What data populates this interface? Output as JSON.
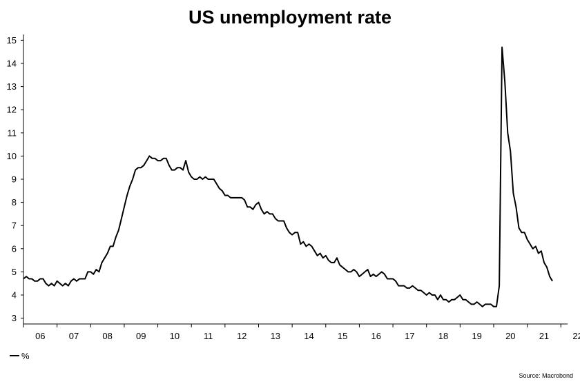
{
  "chart_data": {
    "type": "line",
    "title": "US unemployment rate",
    "source": "Source: Macrobond",
    "xlabel": "",
    "ylabel": "",
    "xlim": [
      2006,
      2022.2
    ],
    "ylim": [
      2.75,
      15.25
    ],
    "yticks": [
      3,
      4,
      5,
      6,
      7,
      8,
      9,
      10,
      11,
      12,
      13,
      14,
      15
    ],
    "xticks": [
      {
        "year": 2006,
        "label": "06"
      },
      {
        "year": 2007,
        "label": "07"
      },
      {
        "year": 2008,
        "label": "08"
      },
      {
        "year": 2009,
        "label": "09"
      },
      {
        "year": 2010,
        "label": "10"
      },
      {
        "year": 2011,
        "label": "11"
      },
      {
        "year": 2012,
        "label": "12"
      },
      {
        "year": 2013,
        "label": "13"
      },
      {
        "year": 2014,
        "label": "14"
      },
      {
        "year": 2015,
        "label": "15"
      },
      {
        "year": 2016,
        "label": "16"
      },
      {
        "year": 2017,
        "label": "17"
      },
      {
        "year": 2018,
        "label": "18"
      },
      {
        "year": 2019,
        "label": "19"
      },
      {
        "year": 2020,
        "label": "20"
      },
      {
        "year": 2021,
        "label": "21"
      },
      {
        "year": 2022,
        "label": "22"
      }
    ],
    "grid": false,
    "legend": "bottom-left",
    "series": [
      {
        "name": "%",
        "color": "#000000",
        "start": "2006-01",
        "frequency": "monthly",
        "values": [
          4.7,
          4.8,
          4.7,
          4.7,
          4.6,
          4.6,
          4.7,
          4.7,
          4.5,
          4.4,
          4.5,
          4.4,
          4.6,
          4.5,
          4.4,
          4.5,
          4.4,
          4.6,
          4.7,
          4.6,
          4.7,
          4.7,
          4.7,
          5.0,
          5.0,
          4.9,
          5.1,
          5.0,
          5.4,
          5.6,
          5.8,
          6.1,
          6.1,
          6.5,
          6.8,
          7.3,
          7.8,
          8.3,
          8.7,
          9.0,
          9.4,
          9.5,
          9.5,
          9.6,
          9.8,
          10.0,
          9.9,
          9.9,
          9.8,
          9.8,
          9.9,
          9.9,
          9.6,
          9.4,
          9.4,
          9.5,
          9.5,
          9.4,
          9.8,
          9.3,
          9.1,
          9.0,
          9.0,
          9.1,
          9.0,
          9.1,
          9.0,
          9.0,
          9.0,
          8.8,
          8.6,
          8.5,
          8.3,
          8.3,
          8.2,
          8.2,
          8.2,
          8.2,
          8.2,
          8.1,
          7.8,
          7.8,
          7.7,
          7.9,
          8.0,
          7.7,
          7.5,
          7.6,
          7.5,
          7.5,
          7.3,
          7.2,
          7.2,
          7.2,
          6.9,
          6.7,
          6.6,
          6.7,
          6.7,
          6.2,
          6.3,
          6.1,
          6.2,
          6.1,
          5.9,
          5.7,
          5.8,
          5.6,
          5.7,
          5.5,
          5.4,
          5.4,
          5.6,
          5.3,
          5.2,
          5.1,
          5.0,
          5.0,
          5.1,
          5.0,
          4.8,
          4.9,
          5.0,
          5.1,
          4.8,
          4.9,
          4.8,
          4.9,
          5.0,
          4.9,
          4.7,
          4.7,
          4.7,
          4.6,
          4.4,
          4.4,
          4.4,
          4.3,
          4.3,
          4.4,
          4.3,
          4.2,
          4.2,
          4.1,
          4.0,
          4.1,
          4.0,
          4.0,
          3.8,
          4.0,
          3.8,
          3.8,
          3.7,
          3.8,
          3.8,
          3.9,
          4.0,
          3.8,
          3.8,
          3.7,
          3.6,
          3.6,
          3.7,
          3.6,
          3.5,
          3.6,
          3.6,
          3.6,
          3.5,
          3.5,
          4.4,
          14.7,
          13.2,
          11.0,
          10.2,
          8.4,
          7.8,
          6.9,
          6.7,
          6.7,
          6.4,
          6.2,
          6.0,
          6.1,
          5.8,
          5.9,
          5.4,
          5.2,
          4.8,
          4.6
        ]
      }
    ]
  }
}
